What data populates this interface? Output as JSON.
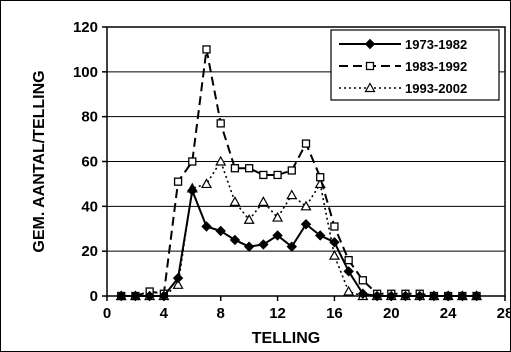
{
  "chart_data": {
    "type": "line",
    "title": "",
    "xlabel": "TELLING",
    "ylabel": "GEM. AANTAL/TELLING",
    "xlim": [
      0,
      28
    ],
    "ylim": [
      0,
      120
    ],
    "x_ticks": [
      0,
      4,
      8,
      12,
      16,
      20,
      24,
      28
    ],
    "x_tick_labels": [
      "0",
      "4",
      "8",
      "12",
      "16",
      "20",
      "24",
      "28"
    ],
    "y_ticks": [
      0,
      20,
      40,
      60,
      80,
      100,
      120
    ],
    "y_tick_labels": [
      "0",
      "20",
      "40",
      "60",
      "80",
      "100",
      "120"
    ],
    "grid": "horizontal",
    "legend_position": "top-right",
    "series": [
      {
        "name": "1973-1982",
        "style": "solid",
        "marker": "filled-diamond",
        "color": "#000000",
        "x": [
          1,
          2,
          3,
          4,
          5,
          6,
          7,
          8,
          9,
          10,
          11,
          12,
          13,
          14,
          15,
          16,
          17,
          18,
          19,
          20,
          21,
          22,
          23,
          24,
          25,
          26
        ],
        "y": [
          0,
          0,
          0,
          0,
          8,
          47,
          31,
          29,
          25,
          22,
          23,
          27,
          22,
          32,
          27,
          24,
          11,
          1,
          0,
          0,
          0,
          0,
          0,
          0,
          0,
          0
        ]
      },
      {
        "name": "1983-1992",
        "style": "dashed",
        "marker": "open-square",
        "color": "#000000",
        "x": [
          1,
          2,
          3,
          4,
          5,
          6,
          7,
          8,
          9,
          10,
          11,
          12,
          13,
          14,
          15,
          16,
          17,
          18,
          19,
          20,
          21,
          22,
          23,
          24,
          25,
          26
        ],
        "y": [
          0,
          0,
          2,
          1,
          51,
          60,
          110,
          77,
          57,
          57,
          54,
          54,
          56,
          68,
          53,
          31,
          16,
          7,
          1,
          1,
          1,
          1,
          0,
          0,
          0,
          0
        ]
      },
      {
        "name": "1993-2002",
        "style": "dotted",
        "marker": "open-triangle",
        "color": "#000000",
        "x": [
          1,
          2,
          3,
          4,
          5,
          6,
          7,
          8,
          9,
          10,
          11,
          12,
          13,
          14,
          15,
          16,
          17,
          18,
          19,
          20,
          21,
          22,
          23,
          24,
          25,
          26
        ],
        "y": [
          0,
          0,
          0,
          0,
          5,
          48,
          50,
          60,
          42,
          34,
          42,
          35,
          45,
          40,
          50,
          18,
          2,
          0,
          0,
          0,
          0,
          0,
          0,
          0,
          0,
          0
        ]
      }
    ]
  }
}
